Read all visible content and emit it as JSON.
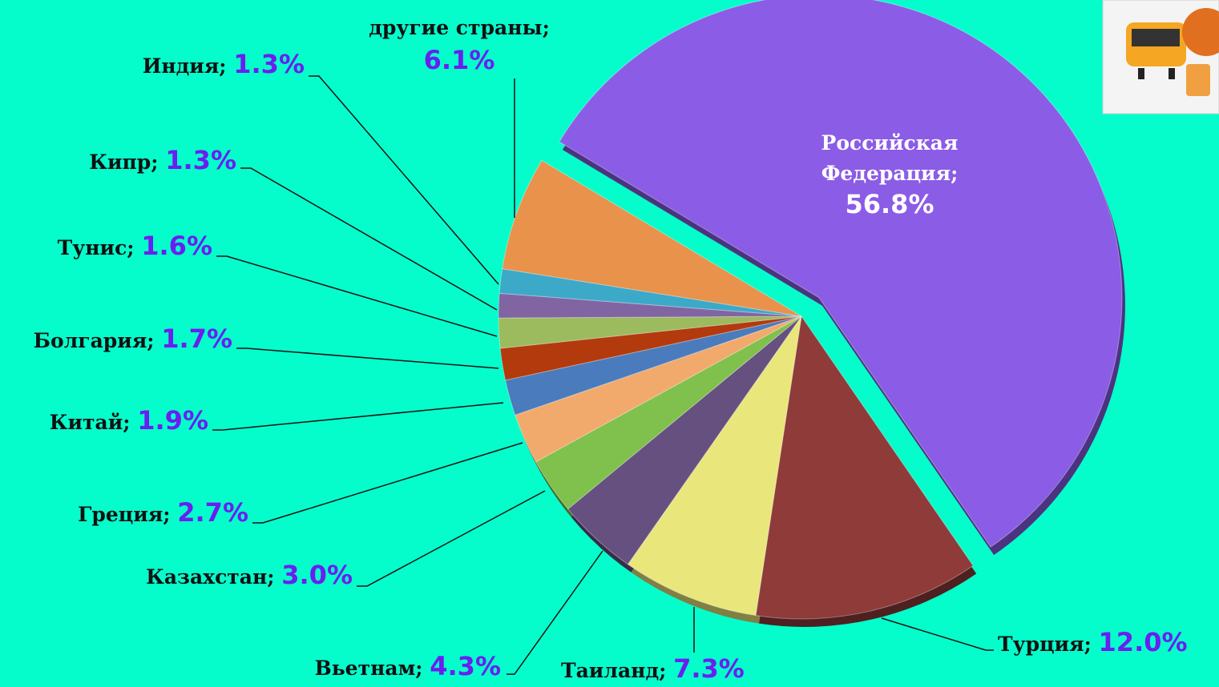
{
  "chart_data": {
    "type": "pie",
    "categories": [
      "Российская Федерация",
      "Турция",
      "Таиланд",
      "Вьетнам",
      "Казахстан",
      "Греция",
      "Китай",
      "Болгария",
      "Тунис",
      "Кипр",
      "Индия",
      "другие страны"
    ],
    "values": [
      56.8,
      12.0,
      7.3,
      4.3,
      3.0,
      2.7,
      1.9,
      1.7,
      1.6,
      1.3,
      1.3,
      6.1
    ],
    "value_labels": [
      "56.8%",
      "12.0%",
      "7.3%",
      "4.3%",
      "3.0%",
      "2.7%",
      "1.9%",
      "1.7%",
      "1.6%",
      "1.3%",
      "1.3%",
      "6.1%"
    ],
    "separator": ";",
    "colors": [
      "#8b5ce6",
      "#8e3b3a",
      "#e9e67c",
      "#65507f",
      "#80c04c",
      "#f2aa6c",
      "#4a7bbd",
      "#b33a0d",
      "#9cba5e",
      "#8165a2",
      "#3ca9c9",
      "#e8924b"
    ]
  }
}
